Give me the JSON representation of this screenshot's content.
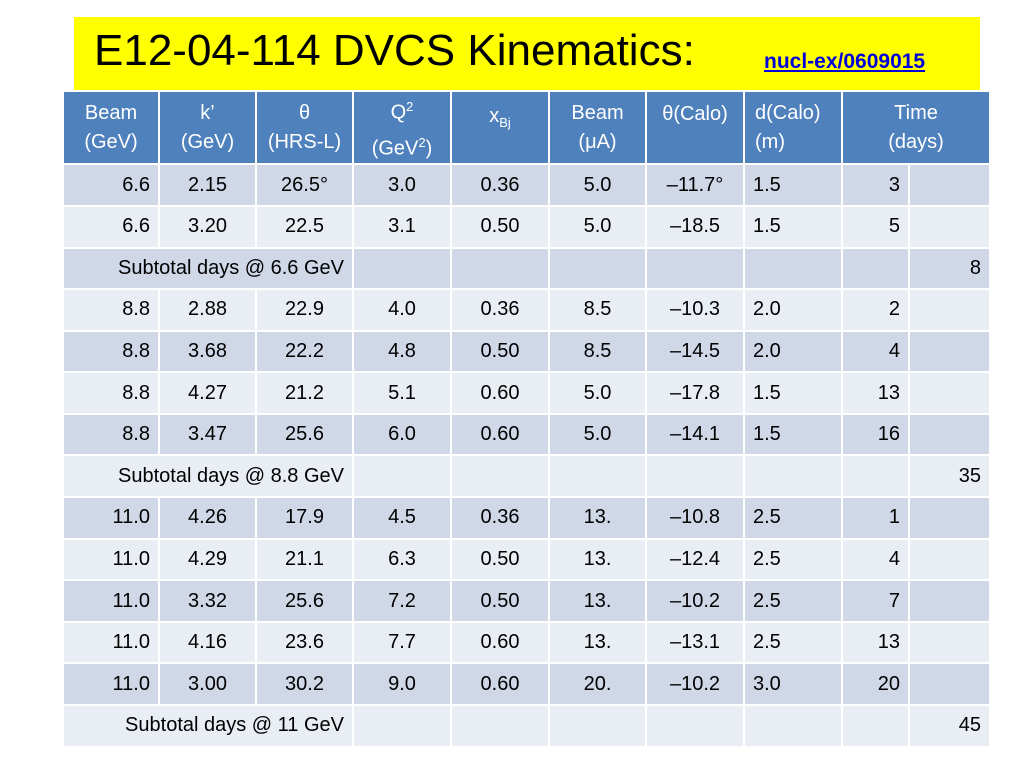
{
  "header": {
    "title": "E12-04-114 DVCS Kinematics:",
    "link": "nucl-ex/0609015"
  },
  "table": {
    "columns": [
      {
        "line1": "Beam",
        "line2": "(GeV)"
      },
      {
        "line1": "k’",
        "line2": "(GeV)"
      },
      {
        "line1": "θ",
        "line2": "(HRS-L)"
      },
      {
        "line1": "Q",
        "line1_sup": "2",
        "line2": "(GeV",
        "line2_sup": "2",
        "line2_end": ")"
      },
      {
        "line1": "x",
        "line1_sub": "Bj"
      },
      {
        "line1": "Beam",
        "line2": "(μA)"
      },
      {
        "line1": "θ(Calo)"
      },
      {
        "line1": "d(Calo)",
        "line2": "(m)"
      },
      {
        "line1": "Time",
        "line2": "(days)"
      }
    ],
    "rows": [
      {
        "beam": "6.6",
        "kprime": "2.15",
        "theta": "26.5°",
        "q2": "3.0",
        "xbj": "0.36",
        "current": "5.0",
        "theta_calo": "–11.7°",
        "d_calo": "1.5",
        "time": "3"
      },
      {
        "beam": "6.6",
        "kprime": "3.20",
        "theta": "22.5",
        "q2": "3.1",
        "xbj": "0.50",
        "current": "5.0",
        "theta_calo": "–18.5",
        "d_calo": "1.5",
        "time": "5"
      },
      {
        "subtotal_label": "Subtotal days @ 6.6 GeV",
        "subtotal_value": "8"
      },
      {
        "beam": "8.8",
        "kprime": "2.88",
        "theta": "22.9",
        "q2": "4.0",
        "xbj": "0.36",
        "current": "8.5",
        "theta_calo": "–10.3",
        "d_calo": "2.0",
        "time": "2"
      },
      {
        "beam": "8.8",
        "kprime": "3.68",
        "theta": "22.2",
        "q2": "4.8",
        "xbj": "0.50",
        "current": "8.5",
        "theta_calo": "–14.5",
        "d_calo": "2.0",
        "time": "4"
      },
      {
        "beam": "8.8",
        "kprime": "4.27",
        "theta": "21.2",
        "q2": "5.1",
        "xbj": "0.60",
        "current": "5.0",
        "theta_calo": "–17.8",
        "d_calo": "1.5",
        "time": "13"
      },
      {
        "beam": "8.8",
        "kprime": "3.47",
        "theta": "25.6",
        "q2": "6.0",
        "xbj": "0.60",
        "current": "5.0",
        "theta_calo": "–14.1",
        "d_calo": "1.5",
        "time": "16"
      },
      {
        "subtotal_label": "Subtotal days @ 8.8 GeV",
        "subtotal_value": "35"
      },
      {
        "beam": "11.0",
        "kprime": "4.26",
        "theta": "17.9",
        "q2": "4.5",
        "xbj": "0.36",
        "current": "13.",
        "theta_calo": "–10.8",
        "d_calo": "2.5",
        "time": "1"
      },
      {
        "beam": "11.0",
        "kprime": "4.29",
        "theta": "21.1",
        "q2": "6.3",
        "xbj": "0.50",
        "current": "13.",
        "theta_calo": "–12.4",
        "d_calo": "2.5",
        "time": "4"
      },
      {
        "beam": "11.0",
        "kprime": "3.32",
        "theta": "25.6",
        "q2": "7.2",
        "xbj": "0.50",
        "current": "13.",
        "theta_calo": "–10.2",
        "d_calo": "2.5",
        "time": "7"
      },
      {
        "beam": "11.0",
        "kprime": "4.16",
        "theta": "23.6",
        "q2": "7.7",
        "xbj": "0.60",
        "current": "13.",
        "theta_calo": "–13.1",
        "d_calo": "2.5",
        "time": "13"
      },
      {
        "beam": "11.0",
        "kprime": "3.00",
        "theta": "30.2",
        "q2": "9.0",
        "xbj": "0.60",
        "current": "20.",
        "theta_calo": "–10.2",
        "d_calo": "3.0",
        "time": "20"
      },
      {
        "subtotal_label": "Subtotal days @ 11 GeV",
        "subtotal_value": "45"
      }
    ]
  },
  "colors": {
    "title_background": "#ffff00",
    "header_background": "#4f81bd",
    "row_dark": "#d0d8e8",
    "row_light": "#e9edf4",
    "link": "#0000dd"
  }
}
